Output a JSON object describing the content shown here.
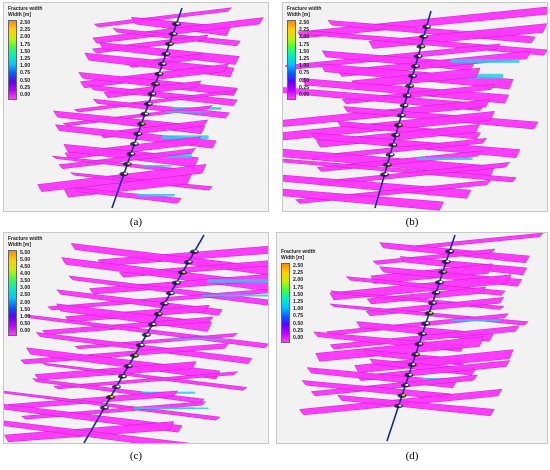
{
  "panels": [
    {
      "caption": "(a)",
      "legend_title": "Fracture width",
      "legend_unit": "Width [m]",
      "ticks": [
        "2.50",
        "2.25",
        "2.00",
        "1.75",
        "1.50",
        "1.25",
        "1.00",
        "0.75",
        "0.50",
        "0.25",
        "0.00"
      ]
    },
    {
      "caption": "(b)",
      "legend_title": "Fracture width",
      "legend_unit": "Width [m]",
      "ticks": [
        "2.50",
        "2.25",
        "2.00",
        "1.75",
        "1.50",
        "1.25",
        "1.00",
        "0.75",
        "0.50",
        "0.25",
        "0.00"
      ]
    },
    {
      "caption": "(c)",
      "legend_title": "Fracture width",
      "legend_unit": "Width [m]",
      "ticks": [
        "5.50",
        "5.00",
        "4.50",
        "4.00",
        "3.50",
        "3.00",
        "2.50",
        "2.00",
        "1.50",
        "1.00",
        "0.50",
        "0.00"
      ]
    },
    {
      "caption": "(d)",
      "legend_title": "Fracture width",
      "legend_unit": "Width [m]",
      "ticks": [
        "2.50",
        "2.25",
        "2.00",
        "1.75",
        "1.50",
        "1.25",
        "1.00",
        "0.75",
        "0.50",
        "0.25",
        "0.00"
      ]
    }
  ],
  "colors": {
    "fracture": "#ff33ff",
    "fracture_edge": "#c020c0",
    "wide_zone": "#33c8e8",
    "wellbore": "#1a2a8c",
    "scale_gradient": [
      "#ff8a00",
      "#ffd000",
      "#c8f000",
      "#40ff40",
      "#00f0c0",
      "#00c8ff",
      "#0060ff",
      "#5a00ff",
      "#c000ff",
      "#ff40ff"
    ]
  }
}
